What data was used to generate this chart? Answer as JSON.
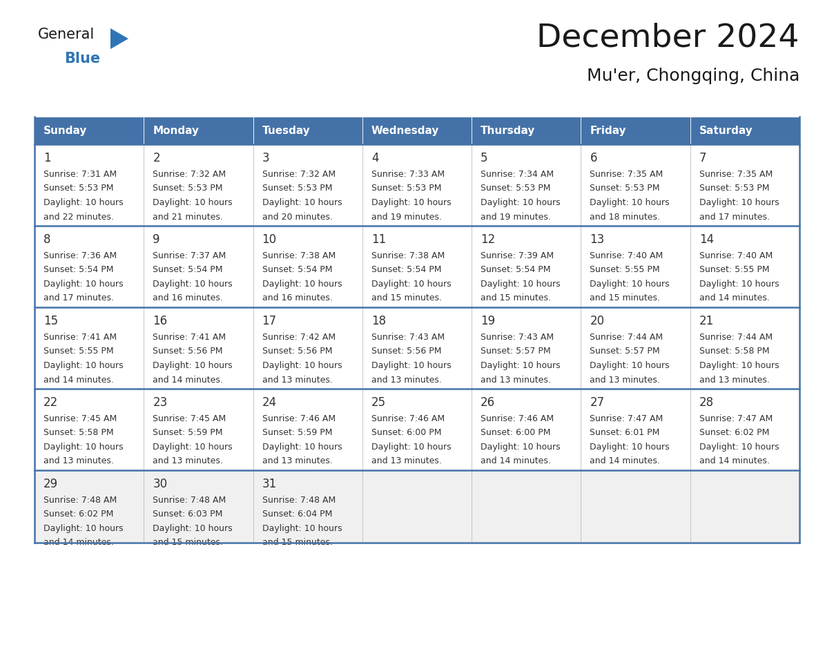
{
  "title": "December 2024",
  "subtitle": "Mu'er, Chongqing, China",
  "days_of_week": [
    "Sunday",
    "Monday",
    "Tuesday",
    "Wednesday",
    "Thursday",
    "Friday",
    "Saturday"
  ],
  "header_bg": "#4472a8",
  "header_text": "#ffffff",
  "cell_bg": "#ffffff",
  "last_row_bg": "#f0f0f0",
  "row_divider_color": "#4472a8",
  "col_divider_color": "#cccccc",
  "text_color": "#333333",
  "title_color": "#1a1a1a",
  "logo_blue": "#2e75b6",
  "weeks": [
    [
      {
        "day": 1,
        "sunrise": "7:31 AM",
        "sunset": "5:53 PM",
        "daylight1": "Daylight: 10 hours",
        "daylight2": "and 22 minutes."
      },
      {
        "day": 2,
        "sunrise": "7:32 AM",
        "sunset": "5:53 PM",
        "daylight1": "Daylight: 10 hours",
        "daylight2": "and 21 minutes."
      },
      {
        "day": 3,
        "sunrise": "7:32 AM",
        "sunset": "5:53 PM",
        "daylight1": "Daylight: 10 hours",
        "daylight2": "and 20 minutes."
      },
      {
        "day": 4,
        "sunrise": "7:33 AM",
        "sunset": "5:53 PM",
        "daylight1": "Daylight: 10 hours",
        "daylight2": "and 19 minutes."
      },
      {
        "day": 5,
        "sunrise": "7:34 AM",
        "sunset": "5:53 PM",
        "daylight1": "Daylight: 10 hours",
        "daylight2": "and 19 minutes."
      },
      {
        "day": 6,
        "sunrise": "7:35 AM",
        "sunset": "5:53 PM",
        "daylight1": "Daylight: 10 hours",
        "daylight2": "and 18 minutes."
      },
      {
        "day": 7,
        "sunrise": "7:35 AM",
        "sunset": "5:53 PM",
        "daylight1": "Daylight: 10 hours",
        "daylight2": "and 17 minutes."
      }
    ],
    [
      {
        "day": 8,
        "sunrise": "7:36 AM",
        "sunset": "5:54 PM",
        "daylight1": "Daylight: 10 hours",
        "daylight2": "and 17 minutes."
      },
      {
        "day": 9,
        "sunrise": "7:37 AM",
        "sunset": "5:54 PM",
        "daylight1": "Daylight: 10 hours",
        "daylight2": "and 16 minutes."
      },
      {
        "day": 10,
        "sunrise": "7:38 AM",
        "sunset": "5:54 PM",
        "daylight1": "Daylight: 10 hours",
        "daylight2": "and 16 minutes."
      },
      {
        "day": 11,
        "sunrise": "7:38 AM",
        "sunset": "5:54 PM",
        "daylight1": "Daylight: 10 hours",
        "daylight2": "and 15 minutes."
      },
      {
        "day": 12,
        "sunrise": "7:39 AM",
        "sunset": "5:54 PM",
        "daylight1": "Daylight: 10 hours",
        "daylight2": "and 15 minutes."
      },
      {
        "day": 13,
        "sunrise": "7:40 AM",
        "sunset": "5:55 PM",
        "daylight1": "Daylight: 10 hours",
        "daylight2": "and 15 minutes."
      },
      {
        "day": 14,
        "sunrise": "7:40 AM",
        "sunset": "5:55 PM",
        "daylight1": "Daylight: 10 hours",
        "daylight2": "and 14 minutes."
      }
    ],
    [
      {
        "day": 15,
        "sunrise": "7:41 AM",
        "sunset": "5:55 PM",
        "daylight1": "Daylight: 10 hours",
        "daylight2": "and 14 minutes."
      },
      {
        "day": 16,
        "sunrise": "7:41 AM",
        "sunset": "5:56 PM",
        "daylight1": "Daylight: 10 hours",
        "daylight2": "and 14 minutes."
      },
      {
        "day": 17,
        "sunrise": "7:42 AM",
        "sunset": "5:56 PM",
        "daylight1": "Daylight: 10 hours",
        "daylight2": "and 13 minutes."
      },
      {
        "day": 18,
        "sunrise": "7:43 AM",
        "sunset": "5:56 PM",
        "daylight1": "Daylight: 10 hours",
        "daylight2": "and 13 minutes."
      },
      {
        "day": 19,
        "sunrise": "7:43 AM",
        "sunset": "5:57 PM",
        "daylight1": "Daylight: 10 hours",
        "daylight2": "and 13 minutes."
      },
      {
        "day": 20,
        "sunrise": "7:44 AM",
        "sunset": "5:57 PM",
        "daylight1": "Daylight: 10 hours",
        "daylight2": "and 13 minutes."
      },
      {
        "day": 21,
        "sunrise": "7:44 AM",
        "sunset": "5:58 PM",
        "daylight1": "Daylight: 10 hours",
        "daylight2": "and 13 minutes."
      }
    ],
    [
      {
        "day": 22,
        "sunrise": "7:45 AM",
        "sunset": "5:58 PM",
        "daylight1": "Daylight: 10 hours",
        "daylight2": "and 13 minutes."
      },
      {
        "day": 23,
        "sunrise": "7:45 AM",
        "sunset": "5:59 PM",
        "daylight1": "Daylight: 10 hours",
        "daylight2": "and 13 minutes."
      },
      {
        "day": 24,
        "sunrise": "7:46 AM",
        "sunset": "5:59 PM",
        "daylight1": "Daylight: 10 hours",
        "daylight2": "and 13 minutes."
      },
      {
        "day": 25,
        "sunrise": "7:46 AM",
        "sunset": "6:00 PM",
        "daylight1": "Daylight: 10 hours",
        "daylight2": "and 13 minutes."
      },
      {
        "day": 26,
        "sunrise": "7:46 AM",
        "sunset": "6:00 PM",
        "daylight1": "Daylight: 10 hours",
        "daylight2": "and 14 minutes."
      },
      {
        "day": 27,
        "sunrise": "7:47 AM",
        "sunset": "6:01 PM",
        "daylight1": "Daylight: 10 hours",
        "daylight2": "and 14 minutes."
      },
      {
        "day": 28,
        "sunrise": "7:47 AM",
        "sunset": "6:02 PM",
        "daylight1": "Daylight: 10 hours",
        "daylight2": "and 14 minutes."
      }
    ],
    [
      {
        "day": 29,
        "sunrise": "7:48 AM",
        "sunset": "6:02 PM",
        "daylight1": "Daylight: 10 hours",
        "daylight2": "and 14 minutes."
      },
      {
        "day": 30,
        "sunrise": "7:48 AM",
        "sunset": "6:03 PM",
        "daylight1": "Daylight: 10 hours",
        "daylight2": "and 15 minutes."
      },
      {
        "day": 31,
        "sunrise": "7:48 AM",
        "sunset": "6:04 PM",
        "daylight1": "Daylight: 10 hours",
        "daylight2": "and 15 minutes."
      },
      null,
      null,
      null,
      null
    ]
  ]
}
